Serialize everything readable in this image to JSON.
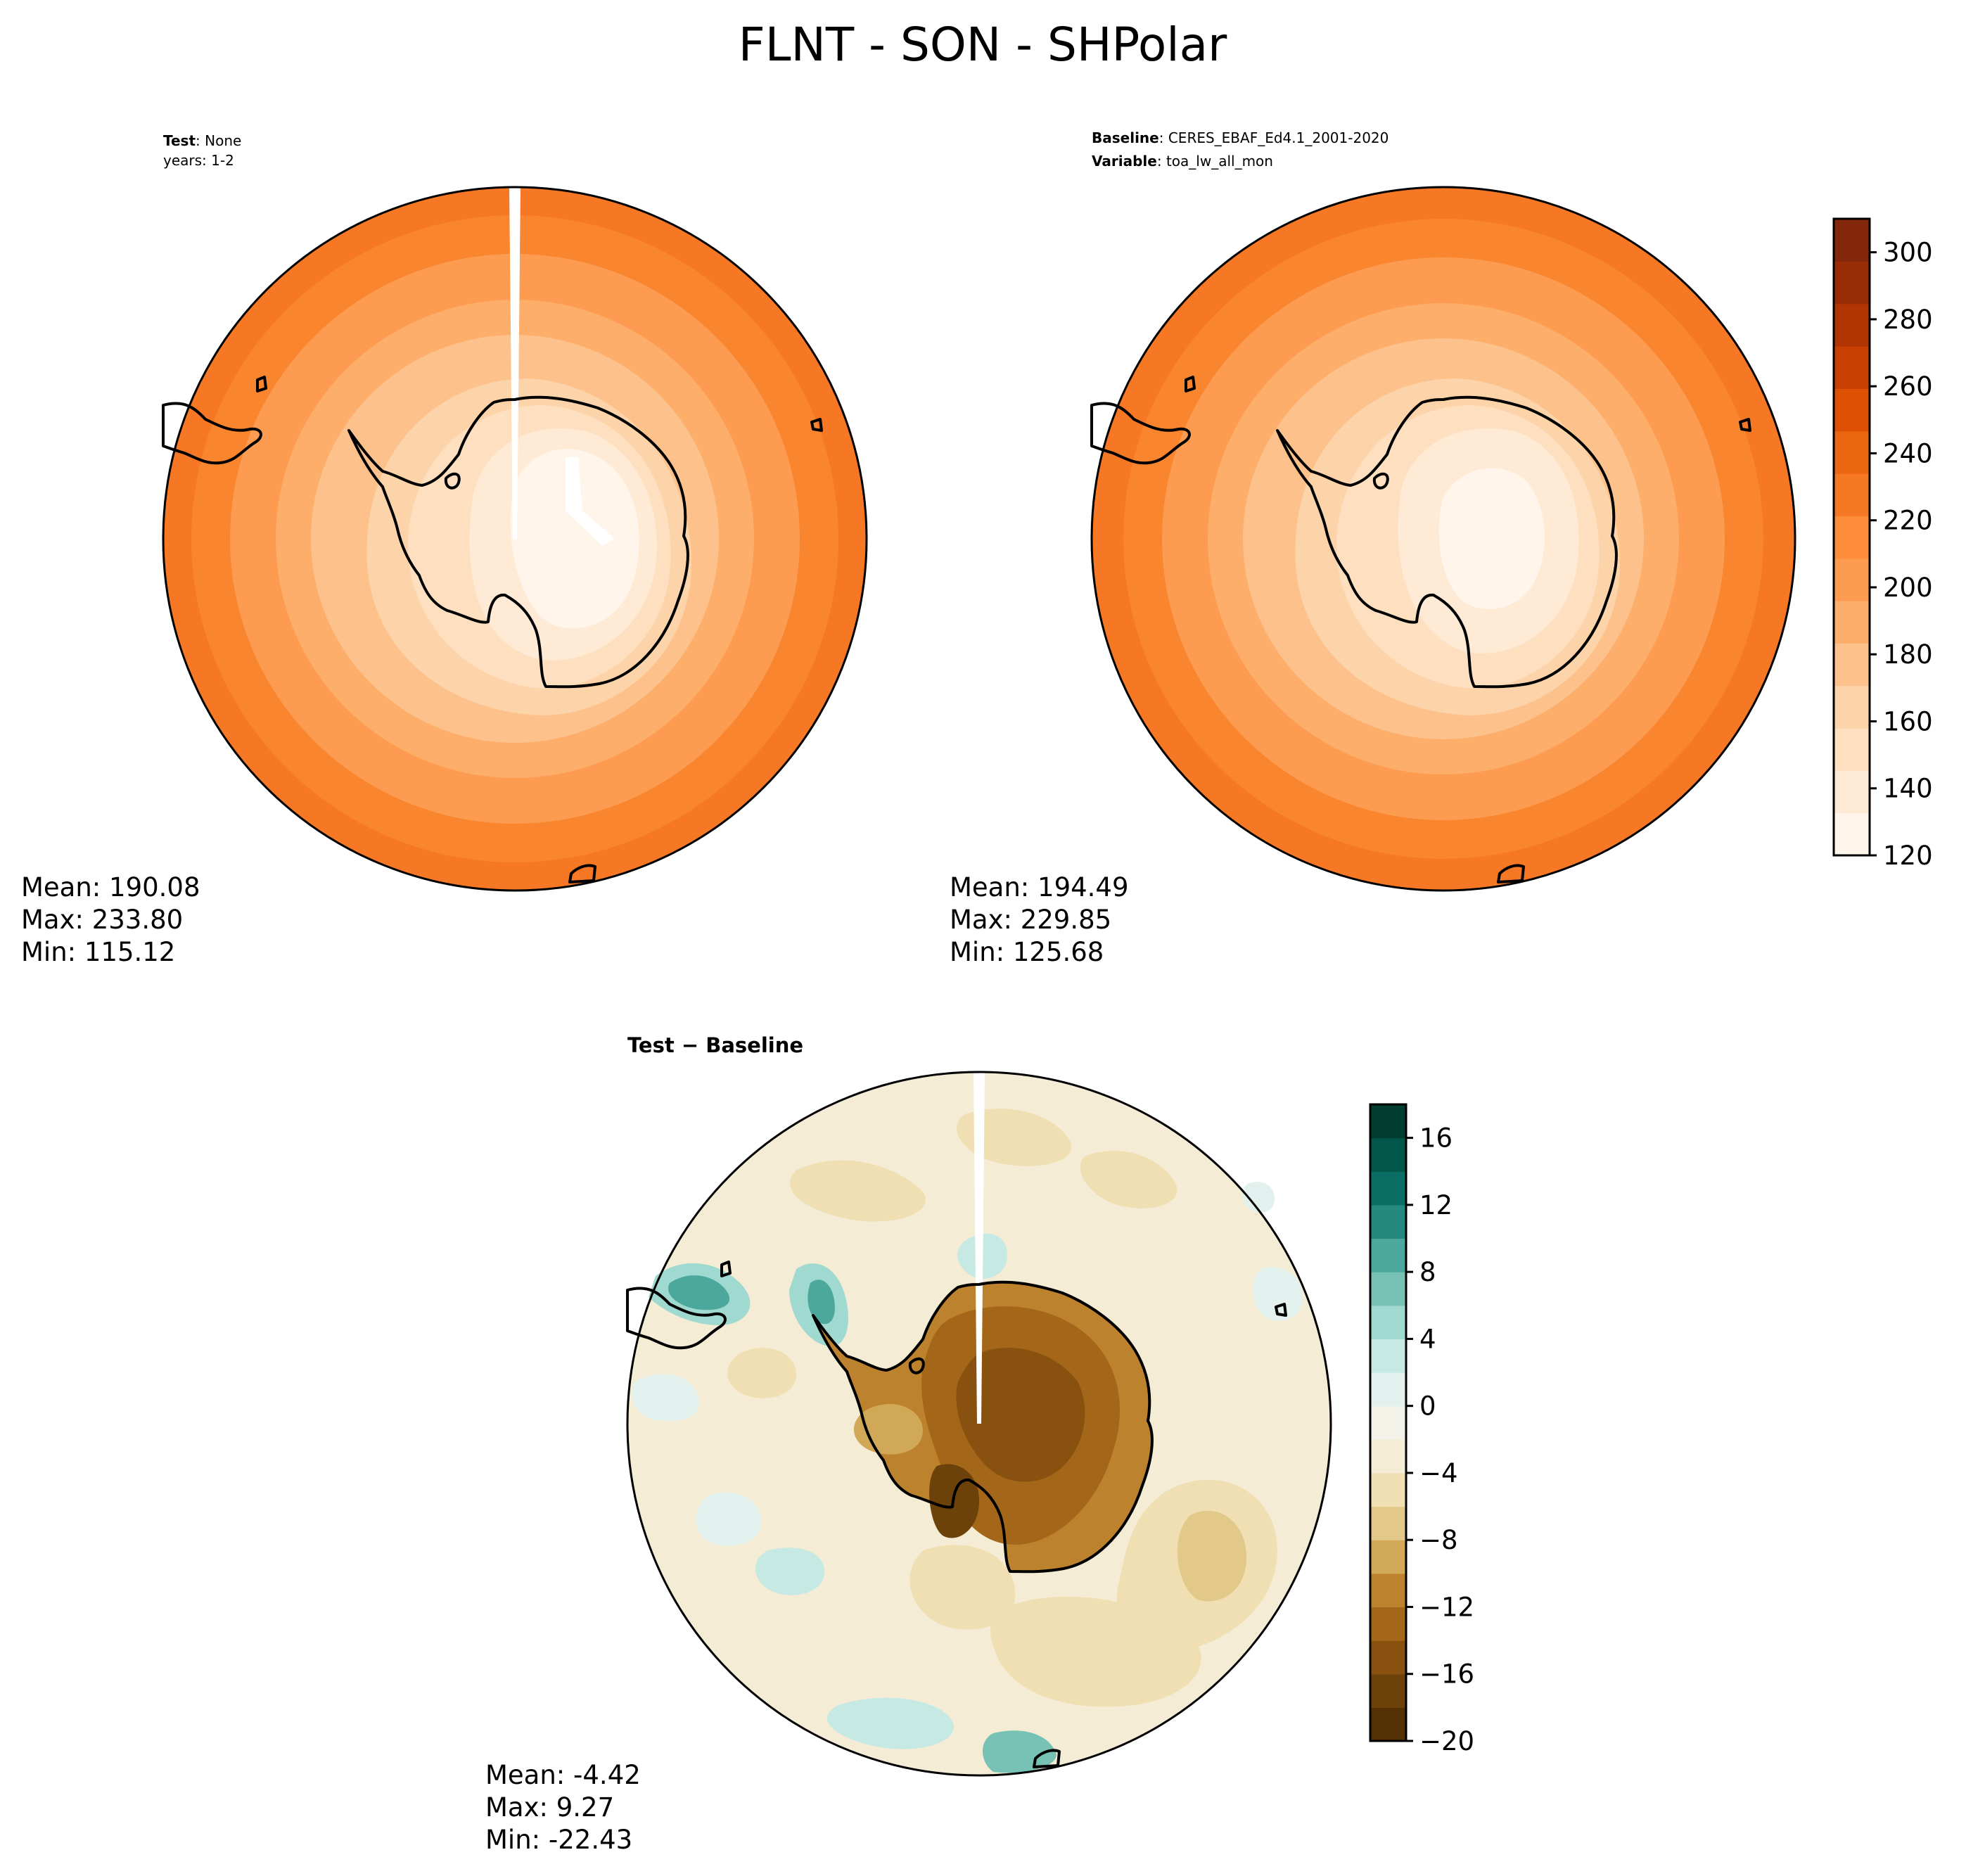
{
  "title": "FLNT - SON - SHPolar",
  "panels": {
    "test": {
      "label_key": "Test",
      "label_sep": ": ",
      "label_value": "None",
      "line2": "years: 1-2",
      "stats": {
        "mean": "Mean: 190.08",
        "max": "Max: 233.80",
        "min": "Min: 115.12"
      }
    },
    "baseline": {
      "label_key": "Baseline",
      "label_sep": ": ",
      "label_value": "CERES_EBAF_Ed4.1_2001-2020",
      "line2_key": "Variable",
      "line2_sep": ": ",
      "line2_value": "toa_lw_all_mon",
      "stats": {
        "mean": "Mean: 194.49",
        "max": "Max: 229.85",
        "min": "Min: 125.68"
      }
    },
    "diff": {
      "label": "Test − Baseline",
      "stats": {
        "mean": "Mean: -4.42",
        "max": "Max:  9.27",
        "min": "Min: -22.43"
      }
    }
  },
  "colorbars": {
    "main": {
      "ticks": [
        "120",
        "140",
        "160",
        "180",
        "200",
        "220",
        "240",
        "260",
        "280",
        "300"
      ],
      "colors": [
        "#fff5eb",
        "#feead5",
        "#fee0c1",
        "#fdd3a9",
        "#fdc28c",
        "#fdae6b",
        "#fd9c51",
        "#fd8c3b",
        "#f67824",
        "#ec6511",
        "#de5105",
        "#c84102",
        "#b03503",
        "#982c04",
        "#84270a"
      ]
    },
    "diff": {
      "ticks": [
        "−20",
        "−16",
        "−12",
        "−8",
        "−4",
        "0",
        "4",
        "8",
        "12",
        "16"
      ],
      "colors": [
        "#543005",
        "#6d410a",
        "#895110",
        "#a46618",
        "#bd822e",
        "#d1a857",
        "#e2c98a",
        "#efdfb2",
        "#f5ecd6",
        "#f2f2e9",
        "#e2f1ed",
        "#c6e9e4",
        "#a0d9cf",
        "#77c2b4",
        "#4ca79c",
        "#25897f",
        "#0b6e64",
        "#00574a",
        "#003c30"
      ]
    }
  }
}
